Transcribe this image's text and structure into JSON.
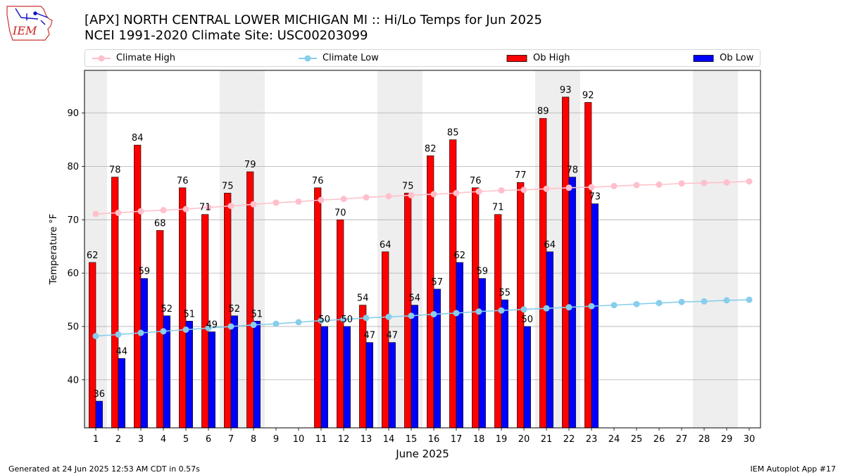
{
  "header": {
    "title_line1": "[APX] NORTH CENTRAL LOWER MICHIGAN  MI :: Hi/Lo Temps for Jun 2025",
    "title_line2": "NCEI 1991-2020 Climate Site: USC00203099",
    "logo_text": "IEM"
  },
  "legend": [
    {
      "label": "Climate High",
      "kind": "line",
      "color": "#ffc0cb"
    },
    {
      "label": "Climate Low",
      "kind": "line",
      "color": "#87ceeb"
    },
    {
      "label": "Ob High",
      "kind": "bar",
      "color": "#ff0000"
    },
    {
      "label": "Ob Low",
      "kind": "bar",
      "color": "#0000ff"
    }
  ],
  "chart_data": {
    "type": "bar",
    "xlabel": "June 2025",
    "ylabel": "Temperature °F",
    "ylim": [
      31,
      98
    ],
    "yticks": [
      40,
      50,
      60,
      70,
      80,
      90
    ],
    "x": [
      1,
      2,
      3,
      4,
      5,
      6,
      7,
      8,
      9,
      10,
      11,
      12,
      13,
      14,
      15,
      16,
      17,
      18,
      19,
      20,
      21,
      22,
      23,
      24,
      25,
      26,
      27,
      28,
      29,
      30
    ],
    "weekend_days": [
      1,
      7,
      8,
      14,
      15,
      21,
      22,
      28,
      29
    ],
    "grid": true,
    "legend_position": "top",
    "series": [
      {
        "name": "Ob High",
        "type": "bar",
        "color": "#ff0000",
        "values": [
          62,
          78,
          84,
          68,
          76,
          71,
          75,
          79,
          null,
          null,
          76,
          70,
          54,
          64,
          75,
          82,
          85,
          76,
          71,
          77,
          89,
          93,
          92,
          null,
          null,
          null,
          null,
          null,
          null,
          null
        ]
      },
      {
        "name": "Ob Low",
        "type": "bar",
        "color": "#0000ff",
        "values": [
          36,
          44,
          59,
          52,
          51,
          49,
          52,
          51,
          null,
          null,
          50,
          50,
          47,
          47,
          54,
          57,
          62,
          59,
          55,
          50,
          64,
          78,
          73,
          null,
          null,
          null,
          null,
          null,
          null,
          null
        ]
      },
      {
        "name": "Climate High",
        "type": "line",
        "color": "#ffc0cb",
        "values": [
          71.1,
          71.3,
          71.6,
          71.8,
          72.0,
          72.3,
          72.6,
          72.9,
          73.2,
          73.4,
          73.7,
          73.9,
          74.2,
          74.4,
          74.6,
          74.8,
          75.0,
          75.3,
          75.5,
          75.6,
          75.8,
          76.0,
          76.1,
          76.3,
          76.5,
          76.6,
          76.8,
          76.9,
          77.0,
          77.2
        ]
      },
      {
        "name": "Climate Low",
        "type": "line",
        "color": "#87ceeb",
        "values": [
          48.2,
          48.5,
          48.8,
          49.1,
          49.4,
          49.7,
          50.0,
          50.3,
          50.5,
          50.8,
          51.1,
          51.3,
          51.6,
          51.8,
          52.0,
          52.3,
          52.5,
          52.8,
          53.0,
          53.2,
          53.4,
          53.6,
          53.8,
          54.0,
          54.2,
          54.4,
          54.6,
          54.7,
          54.9,
          55.0
        ]
      }
    ]
  },
  "footer": {
    "left": "Generated at 24 Jun 2025 12:53 AM CDT in 0.57s",
    "right": "IEM Autoplot App #17"
  }
}
